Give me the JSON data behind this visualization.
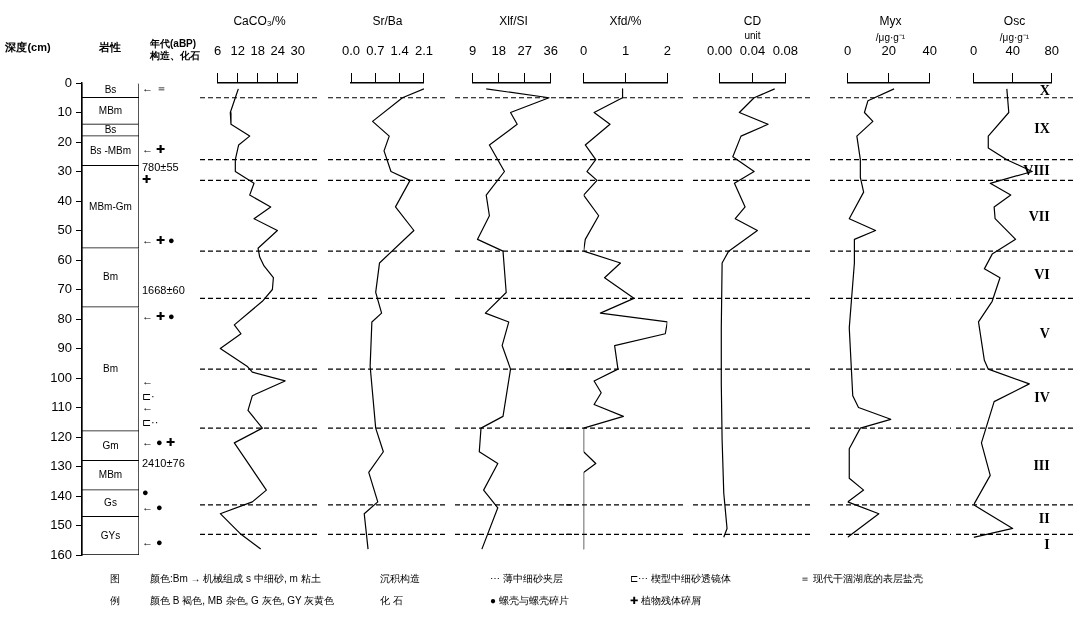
{
  "chart_data": [
    {
      "type": "bar",
      "stacked": true,
      "title": "岩性",
      "ylabel": "深度(cm)",
      "categories": [
        null
      ],
      "ylim": [
        160,
        0
      ],
      "yticks": [
        0,
        10,
        20,
        30,
        40,
        50,
        60,
        70,
        80,
        90,
        100,
        110,
        120,
        130,
        140,
        150,
        160
      ],
      "tick_labels": "y",
      "series": [
        {
          "name": "Bs",
          "color": "#ffffff",
          "values": [
            5
          ]
        },
        {
          "name": "MBm",
          "color": "#ffffff",
          "values": [
            9
          ]
        },
        {
          "name": "Bs",
          "color": "#ffffff",
          "values": [
            4
          ]
        },
        {
          "name": "Bs -MBm",
          "color": "#ffffff",
          "values": [
            10
          ]
        },
        {
          "name": "MBm-Gm",
          "color": "#ffffff",
          "values": [
            28
          ]
        },
        {
          "name": "Bm",
          "color": "#ffffff",
          "values": [
            20
          ]
        },
        {
          "name": "Bm",
          "color": "#ffffff",
          "values": [
            42
          ]
        },
        {
          "name": "Gm",
          "color": "#ffffff",
          "values": [
            10
          ]
        },
        {
          "name": "MBm",
          "color": "#ffffff",
          "values": [
            10
          ]
        },
        {
          "name": "Gs",
          "color": "#ffffff",
          "values": [
            9
          ]
        },
        {
          "name": "GYs",
          "color": "#ffffff",
          "values": [
            13
          ]
        }
      ],
      "annotations": [
        "年代(aBP)",
        "构造、化石",
        "← ＝",
        "← ✚",
        "780±55",
        "✚",
        "← ✚ ●",
        "1668±60",
        "← ✚ ●",
        "←",
        "⊏·",
        "←",
        "⊏··",
        "← ● ✚",
        "2410±76",
        "●",
        "← ●",
        "← ●"
      ]
    },
    {
      "type": "line",
      "orientation": "horizontal",
      "title": "CaCO₃/%",
      "marker": "none",
      "tick_labels": "x",
      "xlim": [
        6,
        30
      ],
      "xticks": [
        6,
        12,
        18,
        24,
        30
      ],
      "ylim": [
        160,
        0
      ],
      "x": [
        2,
        5,
        10,
        14,
        18,
        21,
        26,
        30,
        34,
        38,
        42,
        46,
        50,
        56,
        59,
        62,
        66,
        70,
        74,
        82,
        85,
        90,
        96,
        98,
        101,
        106,
        111,
        117,
        122,
        131,
        138,
        142,
        146,
        153,
        158
      ],
      "series": [
        {
          "color": "#000000",
          "values": [
            12.2,
            11.3,
            9.8,
            10,
            15.6,
            12.3,
            11.3,
            11.3,
            16.9,
            15.6,
            21.9,
            16.9,
            23.9,
            18.1,
            18.6,
            19.9,
            22.7,
            22.4,
            19.4,
            11,
            13,
            6.8,
            14.8,
            16.4,
            26.2,
            16.4,
            15.1,
            19.4,
            11,
            16.4,
            20.6,
            16.4,
            6.8,
            13,
            18.9
          ]
        }
      ],
      "ref_lines": [
        {
          "axis": "y",
          "value": 5,
          "line_style": "dashed"
        },
        {
          "axis": "y",
          "value": 26,
          "line_style": "dashed"
        },
        {
          "axis": "y",
          "value": 33,
          "line_style": "dashed"
        },
        {
          "axis": "y",
          "value": 57,
          "line_style": "dashed"
        },
        {
          "axis": "y",
          "value": 73,
          "line_style": "dashed"
        },
        {
          "axis": "y",
          "value": 97,
          "line_style": "dashed"
        },
        {
          "axis": "y",
          "value": 117,
          "line_style": "dashed"
        },
        {
          "axis": "y",
          "value": 143,
          "line_style": "dashed"
        },
        {
          "axis": "y",
          "value": 153,
          "line_style": "dashed"
        }
      ]
    },
    {
      "type": "line",
      "orientation": "horizontal",
      "title": "Sr/Ba",
      "marker": "none",
      "tick_labels": "x",
      "xlim": [
        0,
        2.1
      ],
      "xticks": [
        {
          "value": 0,
          "label": "0.0"
        },
        0.7,
        1.4,
        2.1
      ],
      "ylim": [
        160,
        0
      ],
      "x": [
        2,
        5,
        13,
        18,
        23,
        30,
        33,
        42,
        50,
        61,
        71,
        78,
        81,
        96,
        117,
        125,
        132,
        142,
        146,
        158
      ],
      "series": [
        {
          "color": "#000000",
          "values": [
            2.1,
            1.48,
            0.62,
            1.1,
            0.95,
            1.15,
            1.7,
            1.28,
            1.81,
            0.82,
            0.71,
            0.88,
            0.6,
            0.55,
            0.71,
            0.93,
            0.51,
            0.77,
            0.38,
            0.49
          ]
        }
      ],
      "ref_lines": [
        {
          "axis": "y",
          "value": 5,
          "line_style": "dashed"
        },
        {
          "axis": "y",
          "value": 26,
          "line_style": "dashed"
        },
        {
          "axis": "y",
          "value": 33,
          "line_style": "dashed"
        },
        {
          "axis": "y",
          "value": 57,
          "line_style": "dashed"
        },
        {
          "axis": "y",
          "value": 73,
          "line_style": "dashed"
        },
        {
          "axis": "y",
          "value": 97,
          "line_style": "dashed"
        },
        {
          "axis": "y",
          "value": 117,
          "line_style": "dashed"
        },
        {
          "axis": "y",
          "value": 143,
          "line_style": "dashed"
        },
        {
          "axis": "y",
          "value": 153,
          "line_style": "dashed"
        }
      ]
    },
    {
      "type": "line",
      "orientation": "horizontal",
      "title": "Xlf/SI",
      "marker": "none",
      "tick_labels": "x",
      "xlim": [
        9,
        36
      ],
      "xticks": [
        9,
        18,
        27,
        36
      ],
      "ylim": [
        160,
        0
      ],
      "x": [
        2,
        5,
        10,
        14,
        21,
        30,
        38,
        45,
        53,
        57,
        71,
        78,
        81,
        89,
        97,
        113,
        117,
        125,
        129,
        138,
        144,
        158
      ],
      "series": [
        {
          "color": "#000000",
          "values": [
            13.7,
            35.4,
            22.1,
            24.4,
            14.8,
            20,
            13.7,
            14.8,
            10.7,
            19.5,
            20.6,
            13.4,
            21.5,
            19.2,
            22.1,
            19.5,
            11.9,
            11.3,
            17.7,
            12.8,
            17.7,
            12.2
          ]
        }
      ],
      "ref_lines": [
        {
          "axis": "y",
          "value": 5,
          "line_style": "dashed"
        },
        {
          "axis": "y",
          "value": 26,
          "line_style": "dashed"
        },
        {
          "axis": "y",
          "value": 33,
          "line_style": "dashed"
        },
        {
          "axis": "y",
          "value": 57,
          "line_style": "dashed"
        },
        {
          "axis": "y",
          "value": 73,
          "line_style": "dashed"
        },
        {
          "axis": "y",
          "value": 97,
          "line_style": "dashed"
        },
        {
          "axis": "y",
          "value": 117,
          "line_style": "dashed"
        },
        {
          "axis": "y",
          "value": 143,
          "line_style": "dashed"
        },
        {
          "axis": "y",
          "value": 153,
          "line_style": "dashed"
        }
      ]
    },
    {
      "type": "line",
      "orientation": "horizontal",
      "title": "Xfd/%",
      "marker": "none",
      "tick_labels": "x",
      "xlim": [
        0,
        2
      ],
      "xticks": [
        0,
        1,
        2
      ],
      "ylim": [
        160,
        0
      ],
      "x": [
        2,
        5,
        10,
        14,
        21,
        26,
        30,
        33,
        38,
        45,
        53,
        57,
        61,
        66,
        73,
        78,
        81,
        85,
        89,
        97,
        101,
        105,
        109,
        113,
        117,
        125,
        129,
        132,
        158
      ],
      "series": [
        {
          "color": "#000000",
          "values": [
            0.93,
            0.93,
            0.25,
            0.63,
            0.04,
            0.29,
            0.08,
            0.32,
            0,
            0.36,
            0.04,
            0,
            0.88,
            0.5,
            1.2,
            0.4,
            2,
            1.95,
            0.74,
            0.82,
            0.25,
            0.42,
            0.25,
            0.95,
            0,
            0,
            0.29,
            0,
            0
          ]
        }
      ],
      "ref_lines": [
        {
          "axis": "y",
          "value": 5,
          "line_style": "dashed"
        },
        {
          "axis": "y",
          "value": 26,
          "line_style": "dashed"
        },
        {
          "axis": "y",
          "value": 33,
          "line_style": "dashed"
        },
        {
          "axis": "y",
          "value": 57,
          "line_style": "dashed"
        },
        {
          "axis": "y",
          "value": 73,
          "line_style": "dashed"
        },
        {
          "axis": "y",
          "value": 97,
          "line_style": "dashed"
        },
        {
          "axis": "y",
          "value": 117,
          "line_style": "dashed"
        },
        {
          "axis": "y",
          "value": 143,
          "line_style": "dashed"
        },
        {
          "axis": "y",
          "value": 153,
          "line_style": "dashed"
        }
      ]
    },
    {
      "type": "line",
      "orientation": "horizontal",
      "title": "CD",
      "subtitle": "unit",
      "marker": "none",
      "tick_labels": "x",
      "xlim": [
        0,
        0.08
      ],
      "xticks": [
        {
          "value": 0,
          "label": "0.00"
        },
        {
          "value": 0.04,
          "label": "0.04"
        },
        {
          "value": 0.08,
          "label": "0.08"
        }
      ],
      "ylim": [
        160,
        0
      ],
      "x": [
        2,
        5,
        10,
        14,
        18,
        25,
        30,
        34,
        42,
        46,
        50,
        57,
        61,
        83,
        102,
        121,
        139,
        151,
        154
      ],
      "series": [
        {
          "color": "#000000",
          "values": [
            0.067,
            0.042,
            0.024,
            0.059,
            0.026,
            0.016,
            0.042,
            0.018,
            0.031,
            0.019,
            0.046,
            0.011,
            0.003,
            0.002,
            0.002,
            0.003,
            0.005,
            0.009,
            0.005
          ]
        }
      ],
      "ref_lines": [
        {
          "axis": "y",
          "value": 5,
          "line_style": "dashed"
        },
        {
          "axis": "y",
          "value": 26,
          "line_style": "dashed"
        },
        {
          "axis": "y",
          "value": 33,
          "line_style": "dashed"
        },
        {
          "axis": "y",
          "value": 57,
          "line_style": "dashed"
        },
        {
          "axis": "y",
          "value": 73,
          "line_style": "dashed"
        },
        {
          "axis": "y",
          "value": 97,
          "line_style": "dashed"
        },
        {
          "axis": "y",
          "value": 117,
          "line_style": "dashed"
        },
        {
          "axis": "y",
          "value": 143,
          "line_style": "dashed"
        },
        {
          "axis": "y",
          "value": 153,
          "line_style": "dashed"
        }
      ]
    },
    {
      "type": "line",
      "orientation": "horizontal",
      "title": "Myx",
      "subtitle": "/μg·g⁻¹",
      "marker": "none",
      "tick_labels": "x",
      "xlim": [
        0,
        40
      ],
      "xticks": [
        0,
        20,
        40
      ],
      "ylim": [
        160,
        0
      ],
      "x": [
        2,
        6,
        10,
        13,
        18,
        26,
        32,
        37,
        46,
        50,
        53,
        61,
        83,
        106,
        110,
        114,
        117,
        124,
        134,
        138,
        142,
        146,
        154
      ],
      "series": [
        {
          "color": "#000000",
          "values": [
            22.6,
            9.9,
            8.2,
            12.3,
            4.5,
            6.2,
            6.2,
            7.8,
            0.8,
            13.6,
            3.3,
            3.3,
            0.8,
            2.5,
            5.3,
            21,
            6.2,
            0.8,
            0.8,
            7.8,
            0,
            15.2,
            0
          ]
        }
      ],
      "ref_lines": [
        {
          "axis": "y",
          "value": 5,
          "line_style": "dashed"
        },
        {
          "axis": "y",
          "value": 26,
          "line_style": "dashed"
        },
        {
          "axis": "y",
          "value": 33,
          "line_style": "dashed"
        },
        {
          "axis": "y",
          "value": 57,
          "line_style": "dashed"
        },
        {
          "axis": "y",
          "value": 73,
          "line_style": "dashed"
        },
        {
          "axis": "y",
          "value": 97,
          "line_style": "dashed"
        },
        {
          "axis": "y",
          "value": 117,
          "line_style": "dashed"
        },
        {
          "axis": "y",
          "value": 143,
          "line_style": "dashed"
        },
        {
          "axis": "y",
          "value": 153,
          "line_style": "dashed"
        }
      ]
    },
    {
      "type": "line",
      "orientation": "horizontal",
      "title": "Osc",
      "subtitle": "/μg·g⁻¹",
      "marker": "none",
      "tick_labels": "x",
      "xlim": [
        0,
        80
      ],
      "xticks": [
        0,
        40,
        80
      ],
      "ylim": [
        160,
        0
      ],
      "x": [
        2,
        10,
        18,
        22,
        26,
        30,
        34,
        38,
        42,
        46,
        53,
        58,
        63,
        66,
        74,
        81,
        94,
        97,
        102,
        108,
        122,
        133,
        143,
        151,
        154
      ],
      "series": [
        {
          "color": "#000000",
          "values": [
            34,
            36,
            15,
            15,
            34,
            60,
            17,
            38,
            21,
            22,
            43,
            19,
            11,
            27,
            19,
            5,
            11,
            15,
            57,
            21,
            8,
            17,
            0,
            40,
            0
          ]
        }
      ],
      "ref_lines": [
        {
          "axis": "y",
          "value": 5,
          "line_style": "dashed"
        },
        {
          "axis": "y",
          "value": 26,
          "line_style": "dashed"
        },
        {
          "axis": "y",
          "value": 33,
          "line_style": "dashed"
        },
        {
          "axis": "y",
          "value": 57,
          "line_style": "dashed"
        },
        {
          "axis": "y",
          "value": 73,
          "line_style": "dashed"
        },
        {
          "axis": "y",
          "value": 97,
          "line_style": "dashed"
        },
        {
          "axis": "y",
          "value": 117,
          "line_style": "dashed"
        },
        {
          "axis": "y",
          "value": 143,
          "line_style": "dashed"
        },
        {
          "axis": "y",
          "value": 153,
          "line_style": "dashed"
        }
      ],
      "annotations": [
        "X",
        "IX",
        "VIII",
        "VII",
        "VI",
        "V",
        "IV",
        "III",
        "II",
        "I"
      ]
    },
    {
      "type": "other",
      "annotations": [
        "图",
        "颜色:Bm → 机械组成 s 中细砂, m 粘土",
        "沉积构造",
        "⋯ 薄中细砂夹层",
        "⊏⋯ 楔型中细砂透镜体",
        "＝ 现代干涸湖底的表层盐壳",
        "例",
        "颜色 B 褐色, MB 杂色, G 灰色, GY 灰黄色",
        "化 石",
        "● 螺壳与螺壳碎片",
        "✚ 植物残体碎屑"
      ]
    }
  ]
}
